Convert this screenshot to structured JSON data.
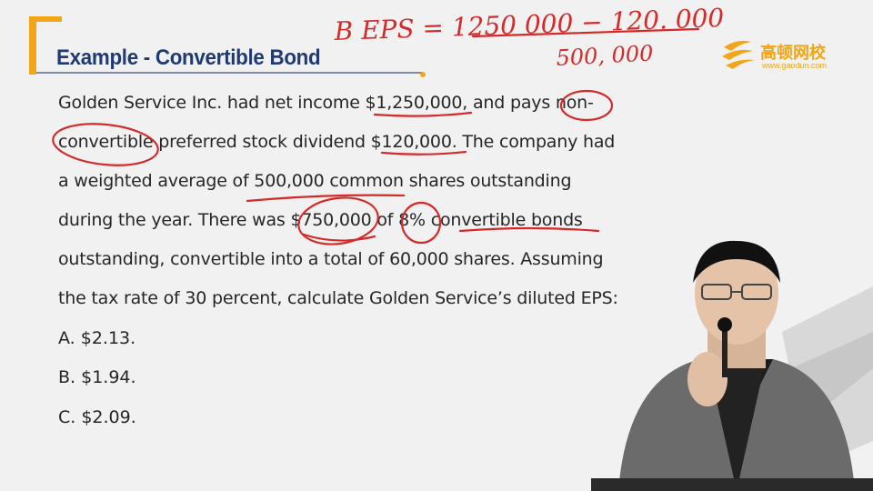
{
  "slide": {
    "title": "Example - Convertible Bond",
    "logo": {
      "name_cn": "高顿网校",
      "url": "www.gaodun.com"
    },
    "paragraph_lines": [
      "Golden Service Inc. had net income $1,250,000, and pays non-",
      "convertible preferred stock dividend $120,000. The company had",
      "a weighted average of 500,000 common shares outstanding",
      "during the year. There was $750,000 of 8% convertible bonds",
      "outstanding, convertible into a total of 60,000 shares. Assuming",
      "the tax rate of 30 percent, calculate Golden Service’s diluted EPS:"
    ],
    "options": [
      "A. $2.13.",
      "B. $1.94.",
      "C. $2.09."
    ]
  },
  "annotation": {
    "numerator": "B EPS = 1250 000 − 120. 000",
    "denominator": "500, 000",
    "color": "#d42a2a"
  },
  "colors": {
    "title": "#213a73",
    "accent": "#f2a516",
    "text": "#262626",
    "background": "#f1f1f1"
  }
}
